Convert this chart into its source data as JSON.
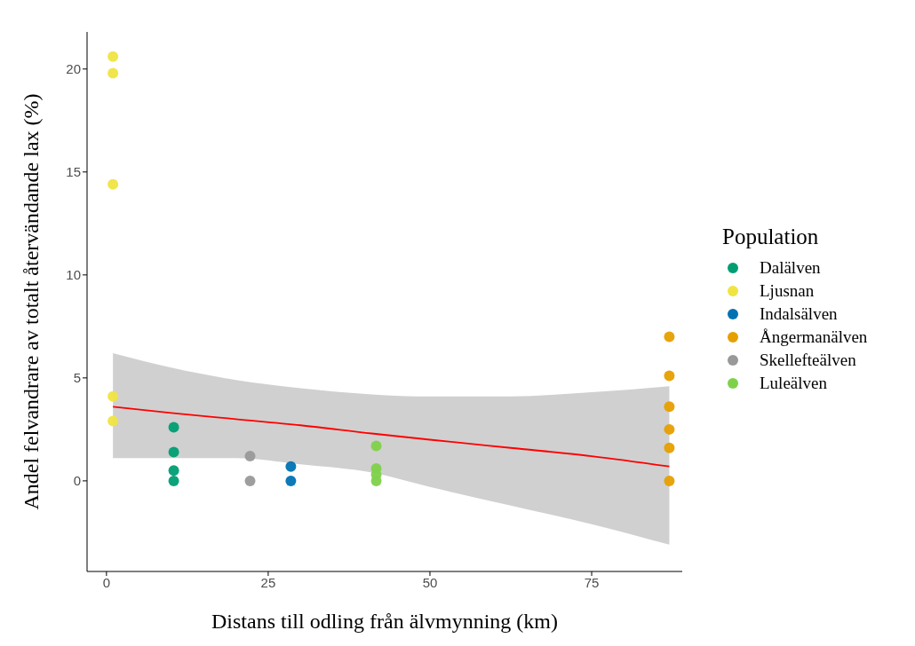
{
  "chart_data": {
    "type": "scatter",
    "xlabel": "Distans till odling från älvmynning (km)",
    "ylabel": "Andel felvandrare av totalt återvändande lax (%)",
    "legend_title": "Population",
    "legend": "right",
    "marker": "circle",
    "xlim": [
      -3,
      89
    ],
    "ylim": [
      -4.4,
      21.8
    ],
    "xticks": [
      0,
      25,
      50,
      75
    ],
    "yticks": [
      0,
      5,
      10,
      15,
      20
    ],
    "series": [
      {
        "name": "Dalälven",
        "color": "#009e73",
        "x": [
          10.4,
          10.4,
          10.4,
          10.4
        ],
        "values": [
          2.6,
          1.4,
          0.5,
          0
        ]
      },
      {
        "name": "Ljusnan",
        "color": "#f0e442",
        "x": [
          1,
          1,
          1,
          1,
          1
        ],
        "values": [
          20.6,
          19.8,
          14.4,
          4.1,
          2.9
        ]
      },
      {
        "name": "Indalsälven",
        "color": "#0072b2",
        "x": [
          28.5,
          28.5
        ],
        "values": [
          0.7,
          0
        ]
      },
      {
        "name": "Ångermanälven",
        "color": "#e69f00",
        "x": [
          87,
          87,
          87,
          87,
          87,
          87
        ],
        "values": [
          7.0,
          5.1,
          3.6,
          2.5,
          1.6,
          0
        ]
      },
      {
        "name": "Skellefteälven",
        "color": "#999999",
        "x": [
          22.2,
          22.2
        ],
        "values": [
          1.2,
          0
        ]
      },
      {
        "name": "Luleälven",
        "color": "#7fd14b",
        "x": [
          41.7,
          41.7,
          41.7,
          41.7
        ],
        "values": [
          1.7,
          0.6,
          0.3,
          0
        ]
      },
      {
        "type": "line",
        "marker": "none",
        "color": "#ff0000",
        "x": [
          1,
          10,
          20,
          30,
          41,
          50,
          62.5,
          75,
          87
        ],
        "values": [
          3.6,
          3.3,
          3.0,
          2.7,
          2.3,
          2.0,
          1.6,
          1.2,
          0.7
        ],
        "lower": [
          1.1,
          1.1,
          1.1,
          0.8,
          0.4,
          -0.3,
          -1.2,
          -2.1,
          -3.1
        ],
        "upper": [
          6.2,
          5.5,
          4.9,
          4.5,
          4.2,
          4.1,
          4.1,
          4.3,
          4.6
        ]
      }
    ]
  }
}
